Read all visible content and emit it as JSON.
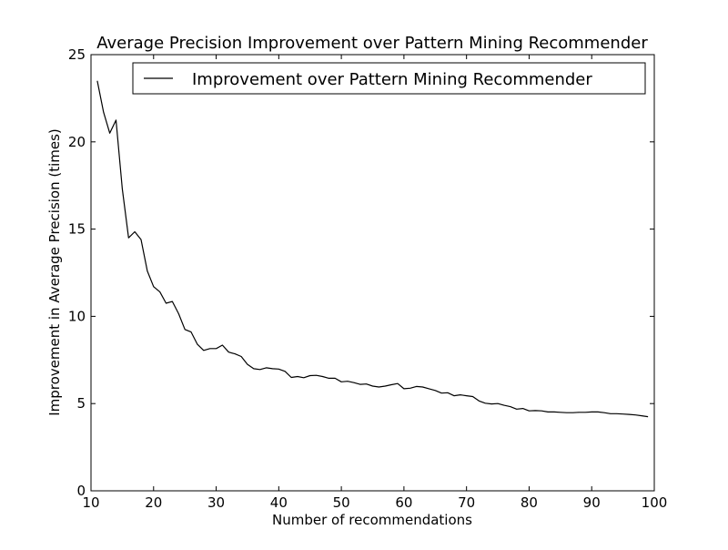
{
  "chart_data": {
    "type": "line",
    "title": "Average Precision Improvement over Pattern Mining Recommender",
    "xlabel": "Number of recommendations",
    "ylabel": "Improvement in Average Precision (times)",
    "xlim": [
      10,
      100
    ],
    "ylim": [
      0,
      25
    ],
    "xticks": [
      10,
      20,
      30,
      40,
      50,
      60,
      70,
      80,
      90,
      100
    ],
    "yticks": [
      0,
      5,
      10,
      15,
      20,
      25
    ],
    "grid": false,
    "legend_position": "top-right",
    "colors": {
      "line": "#000000",
      "axes": "#000000",
      "background": "#ffffff"
    },
    "series": [
      {
        "name": "Improvement over Pattern Mining Recommender",
        "x": [
          11,
          12,
          13,
          14,
          15,
          16,
          17,
          18,
          19,
          20,
          21,
          22,
          23,
          24,
          25,
          26,
          27,
          28,
          29,
          30,
          31,
          32,
          33,
          34,
          35,
          36,
          37,
          38,
          39,
          40,
          41,
          42,
          43,
          44,
          45,
          46,
          47,
          48,
          49,
          50,
          51,
          52,
          53,
          54,
          55,
          56,
          57,
          58,
          59,
          60,
          61,
          62,
          63,
          64,
          65,
          66,
          67,
          68,
          69,
          70,
          71,
          72,
          73,
          74,
          75,
          76,
          77,
          78,
          79,
          80,
          81,
          82,
          83,
          84,
          85,
          86,
          87,
          88,
          89,
          90,
          91,
          92,
          93,
          94,
          95,
          96,
          97,
          98,
          99
        ],
        "y": [
          23.5,
          21.7,
          20.5,
          21.25,
          17.3,
          14.5,
          14.85,
          14.4,
          12.6,
          11.7,
          11.4,
          10.75,
          10.85,
          10.15,
          9.25,
          9.1,
          8.4,
          8.05,
          8.15,
          8.15,
          8.35,
          7.95,
          7.85,
          7.7,
          7.25,
          7.0,
          6.95,
          7.05,
          7.0,
          6.98,
          6.85,
          6.5,
          6.55,
          6.48,
          6.6,
          6.62,
          6.55,
          6.45,
          6.45,
          6.25,
          6.28,
          6.2,
          6.1,
          6.12,
          6.0,
          5.95,
          6.0,
          6.08,
          6.15,
          5.85,
          5.88,
          5.98,
          5.95,
          5.85,
          5.75,
          5.6,
          5.62,
          5.45,
          5.5,
          5.45,
          5.4,
          5.15,
          5.02,
          4.98,
          5.0,
          4.9,
          4.82,
          4.68,
          4.72,
          4.58,
          4.6,
          4.58,
          4.52,
          4.52,
          4.5,
          4.48,
          4.48,
          4.5,
          4.5,
          4.52,
          4.52,
          4.48,
          4.42,
          4.42,
          4.4,
          4.38,
          4.35,
          4.3,
          4.25
        ]
      }
    ]
  }
}
